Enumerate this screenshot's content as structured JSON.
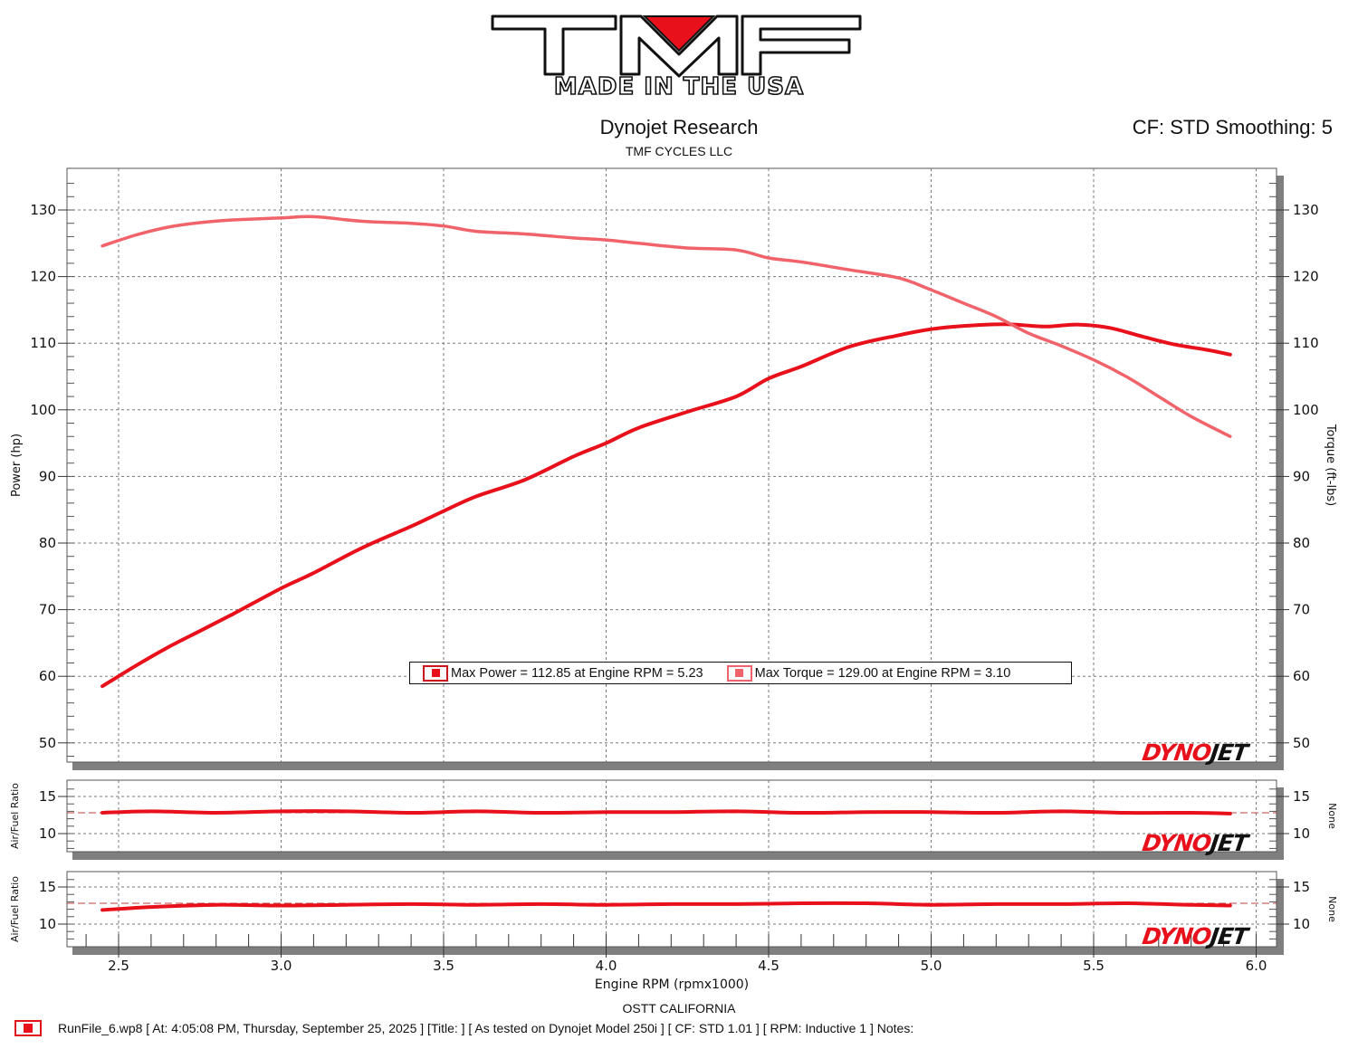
{
  "header": {
    "logo_main": "TMF",
    "logo_sub": "MADE IN THE USA",
    "title": "Dynojet Research",
    "subtitle": "TMF CYCLES LLC",
    "cf_smoothing": "CF: STD Smoothing: 5"
  },
  "colors": {
    "power": "#e8101a",
    "torque": "#f0636a",
    "grid": "#7a7a7a",
    "frame_shadow": "#7f7f7f",
    "logo_red": "#e8101a"
  },
  "legend": {
    "power": "Max Power = 112.85 at Engine RPM = 5.23",
    "torque": "Max Torque = 129.00 at Engine RPM = 3.10"
  },
  "branding": {
    "dyno_red": "DYNO",
    "dyno_black": "JET"
  },
  "footer": {
    "location": "OSTT CALIFORNIA",
    "run_info": "RunFile_6.wp8 [ At: 4:05:08 PM, Thursday, September 25, 2025 ] [Title: ]  [ As tested on Dynojet Model 250i ] [ CF: STD 1.01 ] [ RPM: Inductive 1 ] Notes:"
  },
  "chart_data": [
    {
      "type": "line",
      "title": "Dynojet Research",
      "subtitle": "TMF CYCLES LLC",
      "xlabel": "Engine RPM (rpmx1000)",
      "ylabel": "Power (hp)",
      "ylabel_right": "Torque (ft-lbs)",
      "xlim": [
        2.34,
        6.06
      ],
      "ylim": [
        48,
        136
      ],
      "x_ticks": [
        2.5,
        3.0,
        3.5,
        4.0,
        4.5,
        5.0,
        5.5,
        6.0
      ],
      "y_ticks": [
        50,
        60,
        70,
        80,
        90,
        100,
        110,
        120,
        130
      ],
      "grid": true,
      "legend_position": "center-bottom",
      "series": [
        {
          "name": "Power (hp)",
          "x": [
            2.45,
            2.55,
            2.65,
            2.75,
            2.85,
            3.0,
            3.1,
            3.25,
            3.4,
            3.5,
            3.6,
            3.75,
            3.9,
            4.0,
            4.1,
            4.25,
            4.4,
            4.5,
            4.6,
            4.75,
            4.9,
            5.0,
            5.1,
            5.23,
            5.35,
            5.45,
            5.55,
            5.65,
            5.75,
            5.85,
            5.92
          ],
          "values": [
            58.5,
            61.5,
            64.3,
            66.8,
            69.3,
            73.2,
            75.5,
            79.3,
            82.5,
            84.8,
            87.0,
            89.5,
            93.0,
            95.0,
            97.3,
            99.7,
            102.0,
            104.7,
            106.5,
            109.5,
            111.2,
            112.1,
            112.6,
            112.85,
            112.5,
            112.8,
            112.3,
            111.0,
            109.8,
            109.0,
            108.3
          ]
        },
        {
          "name": "Torque (ft-lbs)",
          "x": [
            2.45,
            2.55,
            2.65,
            2.75,
            2.85,
            3.0,
            3.1,
            3.25,
            3.4,
            3.5,
            3.6,
            3.75,
            3.9,
            4.0,
            4.1,
            4.25,
            4.4,
            4.5,
            4.6,
            4.75,
            4.9,
            5.0,
            5.1,
            5.2,
            5.3,
            5.4,
            5.5,
            5.6,
            5.7,
            5.8,
            5.92
          ],
          "values": [
            124.6,
            126.2,
            127.4,
            128.1,
            128.5,
            128.8,
            129.0,
            128.3,
            128.0,
            127.6,
            126.8,
            126.4,
            125.8,
            125.5,
            125.0,
            124.3,
            124.0,
            122.8,
            122.2,
            121.0,
            119.8,
            118.0,
            116.0,
            114.0,
            111.5,
            109.6,
            107.5,
            105.0,
            102.0,
            99.0,
            96.0
          ]
        }
      ]
    },
    {
      "type": "line",
      "title": "",
      "xlabel": "",
      "ylabel": "Air/Fuel Ratio",
      "ylabel_right": "None",
      "xlim": [
        2.34,
        6.06
      ],
      "ylim": [
        7,
        17
      ],
      "y_ticks": [
        10,
        15
      ],
      "grid": true,
      "reference_line": 12.8,
      "series": [
        {
          "name": "Air/Fuel Ratio",
          "x": [
            2.45,
            2.6,
            2.8,
            3.0,
            3.2,
            3.4,
            3.6,
            3.8,
            4.0,
            4.2,
            4.4,
            4.6,
            4.8,
            5.0,
            5.2,
            5.4,
            5.6,
            5.8,
            5.92
          ],
          "values": [
            12.8,
            13.0,
            12.8,
            13.0,
            13.0,
            12.8,
            13.0,
            12.8,
            12.9,
            12.9,
            13.0,
            12.8,
            12.9,
            12.9,
            12.8,
            13.0,
            12.8,
            12.8,
            12.7
          ]
        }
      ]
    },
    {
      "type": "line",
      "title": "",
      "xlabel": "Engine RPM (rpmx1000)",
      "ylabel": "Air/Fuel Ratio",
      "ylabel_right": "None",
      "xlim": [
        2.34,
        6.06
      ],
      "ylim": [
        7,
        17
      ],
      "y_ticks": [
        10,
        15
      ],
      "grid": true,
      "reference_line": 12.8,
      "series": [
        {
          "name": "Air/Fuel Ratio",
          "x": [
            2.45,
            2.6,
            2.8,
            3.0,
            3.2,
            3.4,
            3.6,
            3.8,
            4.0,
            4.2,
            4.4,
            4.6,
            4.8,
            5.0,
            5.2,
            5.4,
            5.6,
            5.8,
            5.92
          ],
          "values": [
            11.9,
            12.3,
            12.6,
            12.5,
            12.6,
            12.7,
            12.6,
            12.7,
            12.6,
            12.7,
            12.7,
            12.8,
            12.8,
            12.6,
            12.7,
            12.7,
            12.8,
            12.6,
            12.5
          ]
        }
      ]
    }
  ]
}
